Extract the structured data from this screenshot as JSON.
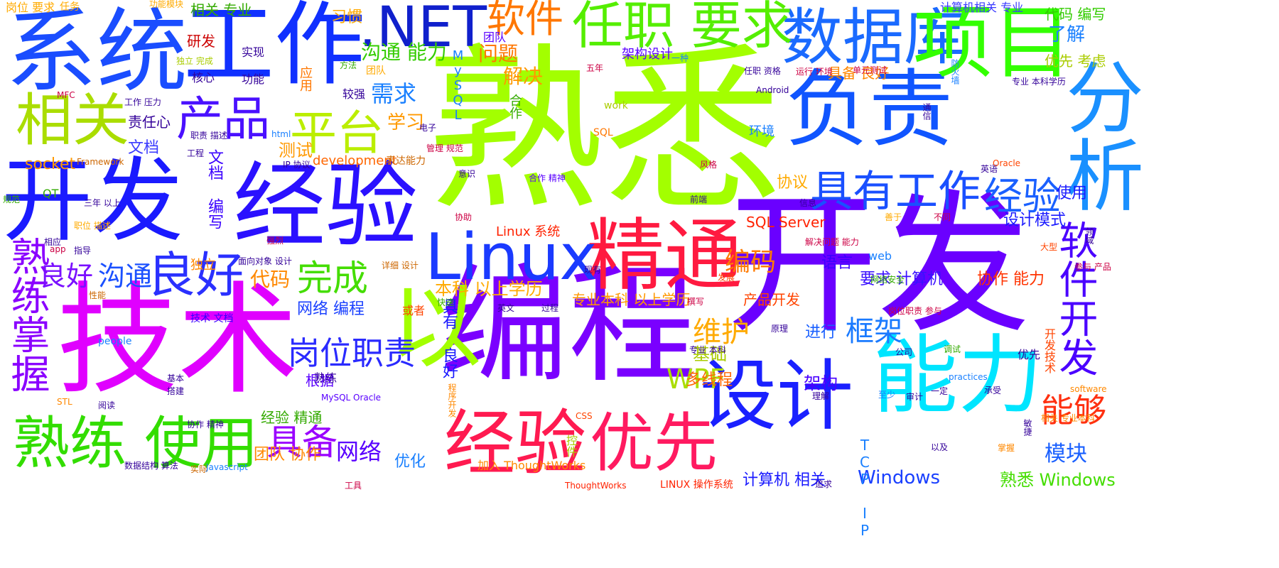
{
  "words": [
    {
      "id": "w1",
      "text": "熟悉",
      "color": "#a3ff00"
    },
    {
      "id": "w2",
      "text": "开发",
      "color": "#6a00ff"
    },
    {
      "id": "w3",
      "text": "技术",
      "color": "#e000ff"
    },
    {
      "id": "w4",
      "text": "编程",
      "color": "#7a00ff"
    },
    {
      "id": "w5",
      "text": "系统",
      "color": "#1a4dff"
    },
    {
      "id": "w6",
      "text": "工作",
      "color": "#1030ff"
    },
    {
      "id": "w7",
      "text": "开发",
      "color": "#1a1aff"
    },
    {
      "id": "w8",
      "text": "经验",
      "color": "#2a10ff"
    },
    {
      "id": "w9",
      "text": "以",
      "color": "#a3ff00"
    },
    {
      "id": "w10",
      "text": "能力",
      "color": "#00e5ff"
    },
    {
      "id": "w11",
      "text": "负责",
      "color": "#1055ff"
    },
    {
      "id": "w12",
      "text": "数据库",
      "color": "#1a6aff"
    },
    {
      "id": "w13",
      "text": "项目",
      "color": "#33ff00"
    },
    {
      "id": "w14",
      "text": "精通",
      "color": "#ff1a40"
    },
    {
      "id": "w15",
      "text": "设计",
      "color": "#1a20ff"
    },
    {
      "id": "w16",
      "text": "经验",
      "color": "#ff1a50"
    },
    {
      "id": "w17",
      "text": "优先",
      "color": "#ff1a60"
    },
    {
      "id": "w18",
      "text": "熟练 使用",
      "color": "#33dd00"
    },
    {
      "id": "w19",
      "text": "相关",
      "color": "#aadd00"
    },
    {
      "id": "w20",
      "text": ".NET",
      "color": "#1020cc"
    },
    {
      "id": "w21",
      "text": "Linux",
      "color": "#1a3aff"
    },
    {
      "id": "w22",
      "text": "任职 要求",
      "color": "#55ee00"
    },
    {
      "id": "w23",
      "text": "具有工作",
      "color": "#1a50ff"
    },
    {
      "id": "w24",
      "text": "分析",
      "color": "#1a90ff"
    },
    {
      "id": "w25",
      "text": "产品",
      "color": "#4a10ff"
    },
    {
      "id": "w26",
      "text": "平台",
      "color": "#bbee00"
    },
    {
      "id": "w27",
      "text": "良好",
      "color": "#2a30ff"
    },
    {
      "id": "w28",
      "text": "软件",
      "color": "#ff7700"
    },
    {
      "id": "w29",
      "text": "经验",
      "color": "#1a60ff"
    },
    {
      "id": "w30",
      "text": "熟练掌握",
      "color": "#8a00ff"
    },
    {
      "id": "w31",
      "text": "软件开发",
      "color": "#4a00ff"
    },
    {
      "id": "w32",
      "text": "岗位职责",
      "color": "#2a2aff"
    },
    {
      "id": "w33",
      "text": "完成",
      "color": "#44dd00"
    },
    {
      "id": "w34",
      "text": "具备",
      "color": "#9a00ff"
    },
    {
      "id": "w35",
      "text": "能够",
      "color": "#ff3010"
    },
    {
      "id": "w36",
      "text": "维护",
      "color": "#ffaa00"
    },
    {
      "id": "w37",
      "text": "框架",
      "color": "#1a7aff"
    },
    {
      "id": "w38",
      "text": "WPF",
      "color": "#aadd00"
    },
    {
      "id": "w39",
      "text": "编码",
      "color": "#ff7a00"
    },
    {
      "id": "w40",
      "text": "良好",
      "color": "#7a10ff"
    },
    {
      "id": "w41",
      "text": "沟通",
      "color": "#1a50ff"
    },
    {
      "id": "w42",
      "text": "代码",
      "color": "#ff8800"
    },
    {
      "id": "w43",
      "text": "需求",
      "color": "#1a80ff"
    },
    {
      "id": "w44",
      "text": "沟通 能力",
      "color": "#33cc00"
    },
    {
      "id": "w45",
      "text": "问题",
      "color": "#ff7700"
    },
    {
      "id": "w46",
      "text": "解决",
      "color": "#ff9900"
    },
    {
      "id": "w47",
      "text": "学习",
      "color": "#ff9900"
    },
    {
      "id": "w48",
      "text": "测试",
      "color": "#ff9900"
    },
    {
      "id": "w49",
      "text": "了解",
      "color": "#1a80ff"
    },
    {
      "id": "w50",
      "text": "设计模式",
      "color": "#1a1aff"
    },
    {
      "id": "w51",
      "text": "使用",
      "color": "#1a1aff"
    },
    {
      "id": "w52",
      "text": "协议",
      "color": "#ffaa00"
    },
    {
      "id": "w53",
      "text": "语言",
      "color": "#3a00ff"
    },
    {
      "id": "w54",
      "text": "要求 计算机",
      "color": "#3a10ff"
    },
    {
      "id": "w55",
      "text": "协作 能力",
      "color": "#ff3300"
    },
    {
      "id": "w56",
      "text": "Windows",
      "color": "#1a40ff"
    },
    {
      "id": "w57",
      "text": "熟悉 Windows",
      "color": "#44dd00"
    },
    {
      "id": "w58",
      "text": "模块",
      "color": "#1a60ff"
    },
    {
      "id": "w59",
      "text": "本科 以上学历",
      "color": "#ffaa00"
    },
    {
      "id": "w60",
      "text": "网络 编程",
      "color": "#1a40ff"
    },
    {
      "id": "w61",
      "text": "网络",
      "color": "#5a00ff"
    },
    {
      "id": "w62",
      "text": "优化",
      "color": "#1a80ff"
    },
    {
      "id": "w63",
      "text": "架构",
      "color": "#4a00ff"
    },
    {
      "id": "w64",
      "text": "多线程",
      "color": "#ff6600"
    },
    {
      "id": "w65",
      "text": "基础",
      "color": "#aacc00"
    },
    {
      "id": "w66",
      "text": "进行",
      "color": "#1a60ff"
    },
    {
      "id": "w67",
      "text": "研发",
      "color": "#cc0000"
    },
    {
      "id": "w68",
      "text": "相关 专业",
      "color": "#33aa00"
    },
    {
      "id": "w69",
      "text": "习惯",
      "color": "#ffaa00"
    },
    {
      "id": "w70",
      "text": "socket",
      "color": "#ff9900"
    },
    {
      "id": "w71",
      "text": "文档",
      "color": "#3a3aff"
    },
    {
      "id": "w72",
      "text": "责任心",
      "color": "#330099"
    },
    {
      "id": "w73",
      "text": "文档 编写",
      "color": "#3a00ff"
    },
    {
      "id": "w74",
      "text": "具有 良好",
      "color": "#1a1aff"
    },
    {
      "id": "w75",
      "text": "计算机 相关",
      "color": "#1a1aff"
    },
    {
      "id": "w76",
      "text": "团队 协作",
      "color": "#ff8800"
    },
    {
      "id": "w77",
      "text": "经验 精通",
      "color": "#33aa00"
    },
    {
      "id": "w78",
      "text": "根据",
      "color": "#5a00ff"
    },
    {
      "id": "w79",
      "text": "代码 编写",
      "color": "#33cc00"
    },
    {
      "id": "w80",
      "text": "优先 考虑",
      "color": "#aacc00"
    },
    {
      "id": "w81",
      "text": "产品开发",
      "color": "#ff4400"
    },
    {
      "id": "w82",
      "text": "专业本科 以上学历",
      "color": "#ff9900"
    },
    {
      "id": "w83",
      "text": "Linux 系统",
      "color": "#ff2200"
    },
    {
      "id": "w84",
      "text": "SQL Server",
      "color": "#ff2200"
    },
    {
      "id": "w85",
      "text": "development",
      "color": "#ff6600"
    },
    {
      "id": "w86",
      "text": "计算机相关 专业",
      "color": "#3a3aff"
    },
    {
      "id": "w87",
      "text": "架构设计",
      "color": "#5a00ff"
    },
    {
      "id": "w88",
      "text": "具备 良好",
      "color": "#ff8800"
    },
    {
      "id": "w89",
      "text": "环境",
      "color": "#1a80ff"
    },
    {
      "id": "w90",
      "text": "实现",
      "color": "#330099"
    },
    {
      "id": "w91",
      "text": "功能",
      "color": "#330099"
    },
    {
      "id": "w92",
      "text": "核心",
      "color": "#330099"
    },
    {
      "id": "w93",
      "text": "岗位 要求",
      "color": "#ffaa00"
    },
    {
      "id": "w94",
      "text": "任务",
      "color": "#ffaa00"
    },
    {
      "id": "w95",
      "text": "功能模块",
      "color": "#ffaa00"
    },
    {
      "id": "w96",
      "text": "独立 完成",
      "color": "#aacc00"
    },
    {
      "id": "w97",
      "text": "团队",
      "color": "#ffaa00"
    },
    {
      "id": "w98",
      "text": "较强",
      "color": "#330099"
    },
    {
      "id": "w99",
      "text": "方法",
      "color": "#33aa00"
    },
    {
      "id": "w100",
      "text": "应用",
      "color": "#ff7700"
    },
    {
      "id": "w101",
      "text": "合作",
      "color": "#33aa00"
    },
    {
      "id": "w102",
      "text": "团队",
      "color": "#5a00ff"
    },
    {
      "id": "w103",
      "text": "MySQL",
      "color": "#1a80ff"
    },
    {
      "id": "w104",
      "text": "work",
      "color": "#aacc00"
    },
    {
      "id": "w105",
      "text": "SQL",
      "color": "#ff7700"
    },
    {
      "id": "w106",
      "text": "html",
      "color": "#1a80ff"
    },
    {
      "id": "w107",
      "text": "电子",
      "color": "#330099"
    },
    {
      "id": "w108",
      "text": "管理 规范",
      "color": "#cc0044"
    },
    {
      "id": "w109",
      "text": "表达能力",
      "color": "#cc6600"
    },
    {
      "id": "w110",
      "text": "IP 协议",
      "color": "#330099"
    },
    {
      "id": "w111",
      "text": "Framework",
      "color": "#cc6600"
    },
    {
      "id": "w112",
      "text": "工程",
      "color": "#330099"
    },
    {
      "id": "w113",
      "text": "职责 描述",
      "color": "#330099"
    },
    {
      "id": "w114",
      "text": "工作 压力",
      "color": "#330099"
    },
    {
      "id": "w115",
      "text": "MFC",
      "color": "#cc0044"
    },
    {
      "id": "w116",
      "text": "QT",
      "color": "#33aa00"
    },
    {
      "id": "w117",
      "text": "规范",
      "color": "#33aa00"
    },
    {
      "id": "w118",
      "text": "三年 以上",
      "color": "#330099"
    },
    {
      "id": "w119",
      "text": "职位 描述",
      "color": "#ffaa00"
    },
    {
      "id": "w120",
      "text": "相应",
      "color": "#330099"
    },
    {
      "id": "w121",
      "text": "app",
      "color": "#cc0044"
    },
    {
      "id": "w122",
      "text": "指导",
      "color": "#330099"
    },
    {
      "id": "w123",
      "text": "强烈",
      "color": "#cc0044"
    },
    {
      "id": "w124",
      "text": "独立",
      "color": "#ff8800"
    },
    {
      "id": "w125",
      "text": "面向对象 设计",
      "color": "#330099"
    },
    {
      "id": "w126",
      "text": "详细 设计",
      "color": "#cc6600"
    },
    {
      "id": "w127",
      "text": "性能",
      "color": "#cc6600"
    },
    {
      "id": "w128",
      "text": "技术 文档",
      "color": "#3a00ff"
    },
    {
      "id": "w129",
      "text": "熟练",
      "color": "#330099"
    },
    {
      "id": "w130",
      "text": "或者",
      "color": "#ff4400"
    },
    {
      "id": "w131",
      "text": "快速",
      "color": "#33aa00"
    },
    {
      "id": "w132",
      "text": "英文",
      "color": "#330099"
    },
    {
      "id": "w133",
      "text": "过程",
      "color": "#330099"
    },
    {
      "id": "w134",
      "text": "people",
      "color": "#1a80ff"
    },
    {
      "id": "w135",
      "text": "基本",
      "color": "#330099"
    },
    {
      "id": "w136",
      "text": "搭建",
      "color": "#330099"
    },
    {
      "id": "w137",
      "text": "阅读",
      "color": "#330099"
    },
    {
      "id": "w138",
      "text": "STL",
      "color": "#ff8800"
    },
    {
      "id": "w139",
      "text": "协作 精神",
      "color": "#330099"
    },
    {
      "id": "w140",
      "text": "MySQL Oracle",
      "color": "#5a00ff"
    },
    {
      "id": "w141",
      "text": "程序开发",
      "color": "#ff8800"
    },
    {
      "id": "w142",
      "text": "数据结构 算法",
      "color": "#330099"
    },
    {
      "id": "w143",
      "text": "实际",
      "color": "#cc6600"
    },
    {
      "id": "w144",
      "text": "Javascript",
      "color": "#1a80ff"
    },
    {
      "id": "w145",
      "text": "工具",
      "color": "#cc0044"
    },
    {
      "id": "w146",
      "text": "加入 ThoughtWorks",
      "color": "#ff8800"
    },
    {
      "id": "w147",
      "text": "ThoughtWorks",
      "color": "#ff2200"
    },
    {
      "id": "w148",
      "text": "LINUX 操作系统",
      "color": "#ff2200"
    },
    {
      "id": "w149",
      "text": "追求",
      "color": "#330099"
    },
    {
      "id": "w150",
      "text": "CSS",
      "color": "#ff4400"
    },
    {
      "id": "w151",
      "text": "控件",
      "color": "#aacc00"
    },
    {
      "id": "w152",
      "text": "TCP IP",
      "color": "#1a80ff"
    },
    {
      "id": "w153",
      "text": "理解",
      "color": "#330099"
    },
    {
      "id": "w154",
      "text": "至少",
      "color": "#1a80ff"
    },
    {
      "id": "w155",
      "text": "审计",
      "color": "#330099"
    },
    {
      "id": "w156",
      "text": "一定",
      "color": "#330099"
    },
    {
      "id": "w157",
      "text": "以及",
      "color": "#330099"
    },
    {
      "id": "w158",
      "text": "掌握",
      "color": "#ff8800"
    },
    {
      "id": "w159",
      "text": "相关 专业本科",
      "color": "#ff8800"
    },
    {
      "id": "w160",
      "text": "敏捷",
      "color": "#330099"
    },
    {
      "id": "w161",
      "text": "software",
      "color": "#ff8800"
    },
    {
      "id": "w162",
      "text": "承受",
      "color": "#330099"
    },
    {
      "id": "w163",
      "text": "practices",
      "color": "#1a80ff"
    },
    {
      "id": "w164",
      "text": "调试",
      "color": "#33aa00"
    },
    {
      "id": "w165",
      "text": "优先",
      "color": "#330099"
    },
    {
      "id": "w166",
      "text": "开发技术",
      "color": "#ff4400"
    },
    {
      "id": "w167",
      "text": "岗位职责 参与",
      "color": "#cc0044"
    },
    {
      "id": "w168",
      "text": "公司",
      "color": "#330099"
    },
    {
      "id": "w169",
      "text": "原理",
      "color": "#330099"
    },
    {
      "id": "w170",
      "text": "专业 本科",
      "color": "#330099"
    },
    {
      "id": "w171",
      "text": "撰写",
      "color": "#cc0044"
    },
    {
      "id": "w172",
      "text": "网络安全",
      "color": "#33aa00"
    },
    {
      "id": "w173",
      "text": "发展",
      "color": "#ff4400"
    },
    {
      "id": "w174",
      "text": "web",
      "color": "#1a80ff"
    },
    {
      "id": "w175",
      "text": "现有",
      "color": "#330099"
    },
    {
      "id": "w176",
      "text": "解决问题 能力",
      "color": "#cc0044"
    },
    {
      "id": "w177",
      "text": "善于",
      "color": "#ffaa00"
    },
    {
      "id": "w178",
      "text": "不同",
      "color": "#cc0044"
    },
    {
      "id": "w179",
      "text": "信息",
      "color": "#330099"
    },
    {
      "id": "w180",
      "text": "领域",
      "color": "#330099"
    },
    {
      "id": "w181",
      "text": "大型",
      "color": "#ff4400"
    },
    {
      "id": "w182",
      "text": "参与 产品",
      "color": "#cc0044"
    },
    {
      "id": "w183",
      "text": "英语",
      "color": "#330099"
    },
    {
      "id": "w184",
      "text": "Oracle",
      "color": "#ff4400"
    },
    {
      "id": "w185",
      "text": "风格",
      "color": "#cc0044"
    },
    {
      "id": "w186",
      "text": "前端",
      "color": "#330099"
    },
    {
      "id": "w187",
      "text": "合作 精神",
      "color": "#5a00ff"
    },
    {
      "id": "w188",
      "text": "意识",
      "color": "#330099"
    },
    {
      "id": "w189",
      "text": "协助",
      "color": "#cc0044"
    },
    {
      "id": "w190",
      "text": "五年",
      "color": "#cc0044"
    },
    {
      "id": "w191",
      "text": "一种",
      "color": "#1a80ff"
    },
    {
      "id": "w192",
      "text": "任职 资格",
      "color": "#330099"
    },
    {
      "id": "w193",
      "text": "运行 环境",
      "color": "#cc0044"
    },
    {
      "id": "w194",
      "text": "单元测试",
      "color": "#cc0044"
    },
    {
      "id": "w195",
      "text": "Android",
      "color": "#330099"
    },
    {
      "id": "w196",
      "text": "专业 本科学历",
      "color": "#330099"
    },
    {
      "id": "w197",
      "text": "通信",
      "color": "#330099"
    },
    {
      "id": "w198",
      "text": "防火墙",
      "color": "#1a80ff"
    }
  ]
}
